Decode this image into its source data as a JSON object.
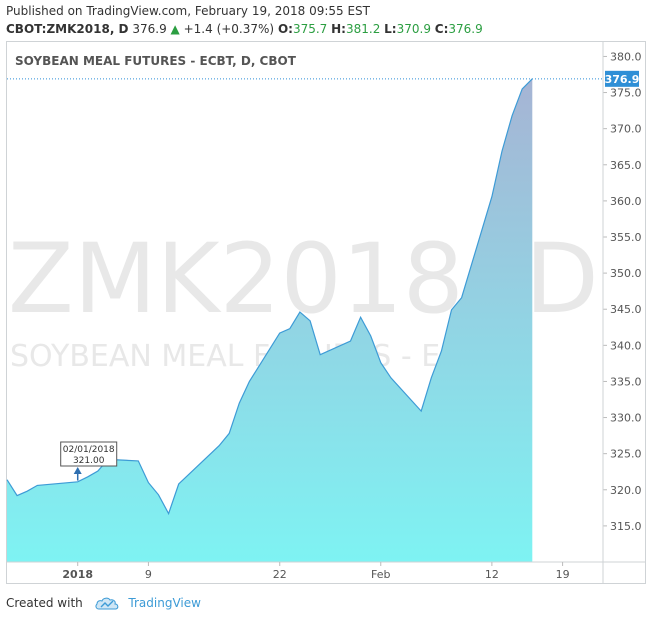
{
  "header": {
    "published": "Published on TradingView.com, February 19, 2018 09:55 EST",
    "symbol": "CBOT:ZMK2018, D",
    "last": "376.9",
    "change_arrow": "▲",
    "change": "+1.4 (+0.37%)",
    "o_label": "O:",
    "o_value": "375.7",
    "h_label": "H:",
    "h_value": "381.2",
    "l_label": "L:",
    "l_value": "370.9",
    "c_label": "C:",
    "c_value": "376.9"
  },
  "footer": {
    "created_with": "Created with",
    "brand": "TradingView",
    "logo_icon": "tradingview-cloud-icon"
  },
  "colors": {
    "line": "#3d9bd6",
    "fill_bottom": "#7ef3f3",
    "fill_top": "#a6b4d4",
    "price_badge": "#2f8fd6",
    "watermark": "#e6e6e6",
    "up": "#2b9e41"
  },
  "chart_data": {
    "type": "area",
    "title": "SOYBEAN MEAL FUTURES - ECBT, D, CBOT",
    "watermark_line1": "ZMK2018, D",
    "watermark_line2": "SOYBEAN MEAL FUTURES - ECBT",
    "x_tick_labels": [
      "2018",
      "9",
      "22",
      "Feb",
      "12",
      "19"
    ],
    "y_tick_labels": [
      "380.0",
      "375.0",
      "370.0",
      "365.0",
      "360.0",
      "355.0",
      "350.0",
      "345.0",
      "340.0",
      "335.0",
      "330.0",
      "325.0",
      "320.0",
      "315.0"
    ],
    "ylim": [
      310.0,
      382.0
    ],
    "y_ticks": [
      380,
      375,
      370,
      365,
      360,
      355,
      350,
      345,
      340,
      335,
      330,
      325,
      320,
      315
    ],
    "x_dates": [
      "2017-12-26",
      "2017-12-27",
      "2017-12-28",
      "2017-12-29",
      "2018-01-02",
      "2018-01-03",
      "2018-01-04",
      "2018-01-05",
      "2018-01-08",
      "2018-01-09",
      "2018-01-10",
      "2018-01-11",
      "2018-01-12",
      "2018-01-16",
      "2018-01-17",
      "2018-01-18",
      "2018-01-19",
      "2018-01-22",
      "2018-01-23",
      "2018-01-24",
      "2018-01-25",
      "2018-01-26",
      "2018-01-29",
      "2018-01-30",
      "2018-01-31",
      "2018-02-01",
      "2018-02-02",
      "2018-02-05",
      "2018-02-06",
      "2018-02-07",
      "2018-02-08",
      "2018-02-09",
      "2018-02-12",
      "2018-02-13",
      "2018-02-14",
      "2018-02-15",
      "2018-02-16"
    ],
    "x_tick_dates": [
      "2018-01-02",
      "2018-01-09",
      "2018-01-22",
      "2018-02-01",
      "2018-02-12",
      "2018-02-19"
    ],
    "x_range": [
      "2017-12-26",
      "2018-02-23"
    ],
    "values": [
      321.4,
      319.2,
      319.8,
      320.6,
      321.1,
      321.8,
      322.6,
      324.2,
      324.0,
      321.0,
      319.3,
      316.7,
      320.8,
      326.1,
      327.8,
      332.0,
      335.0,
      341.7,
      342.3,
      344.6,
      343.4,
      338.7,
      340.6,
      343.9,
      341.3,
      337.6,
      335.5,
      330.9,
      335.5,
      339.2,
      344.9,
      346.6,
      360.6,
      366.9,
      371.8,
      375.5,
      376.9
    ],
    "last_price": "376.9",
    "annotation_date": "02/01/2018",
    "annotation_value": "321.00",
    "annotation_x_date": "2018-01-02",
    "annotation_y": 321.0,
    "grid": false,
    "legend": "none"
  }
}
